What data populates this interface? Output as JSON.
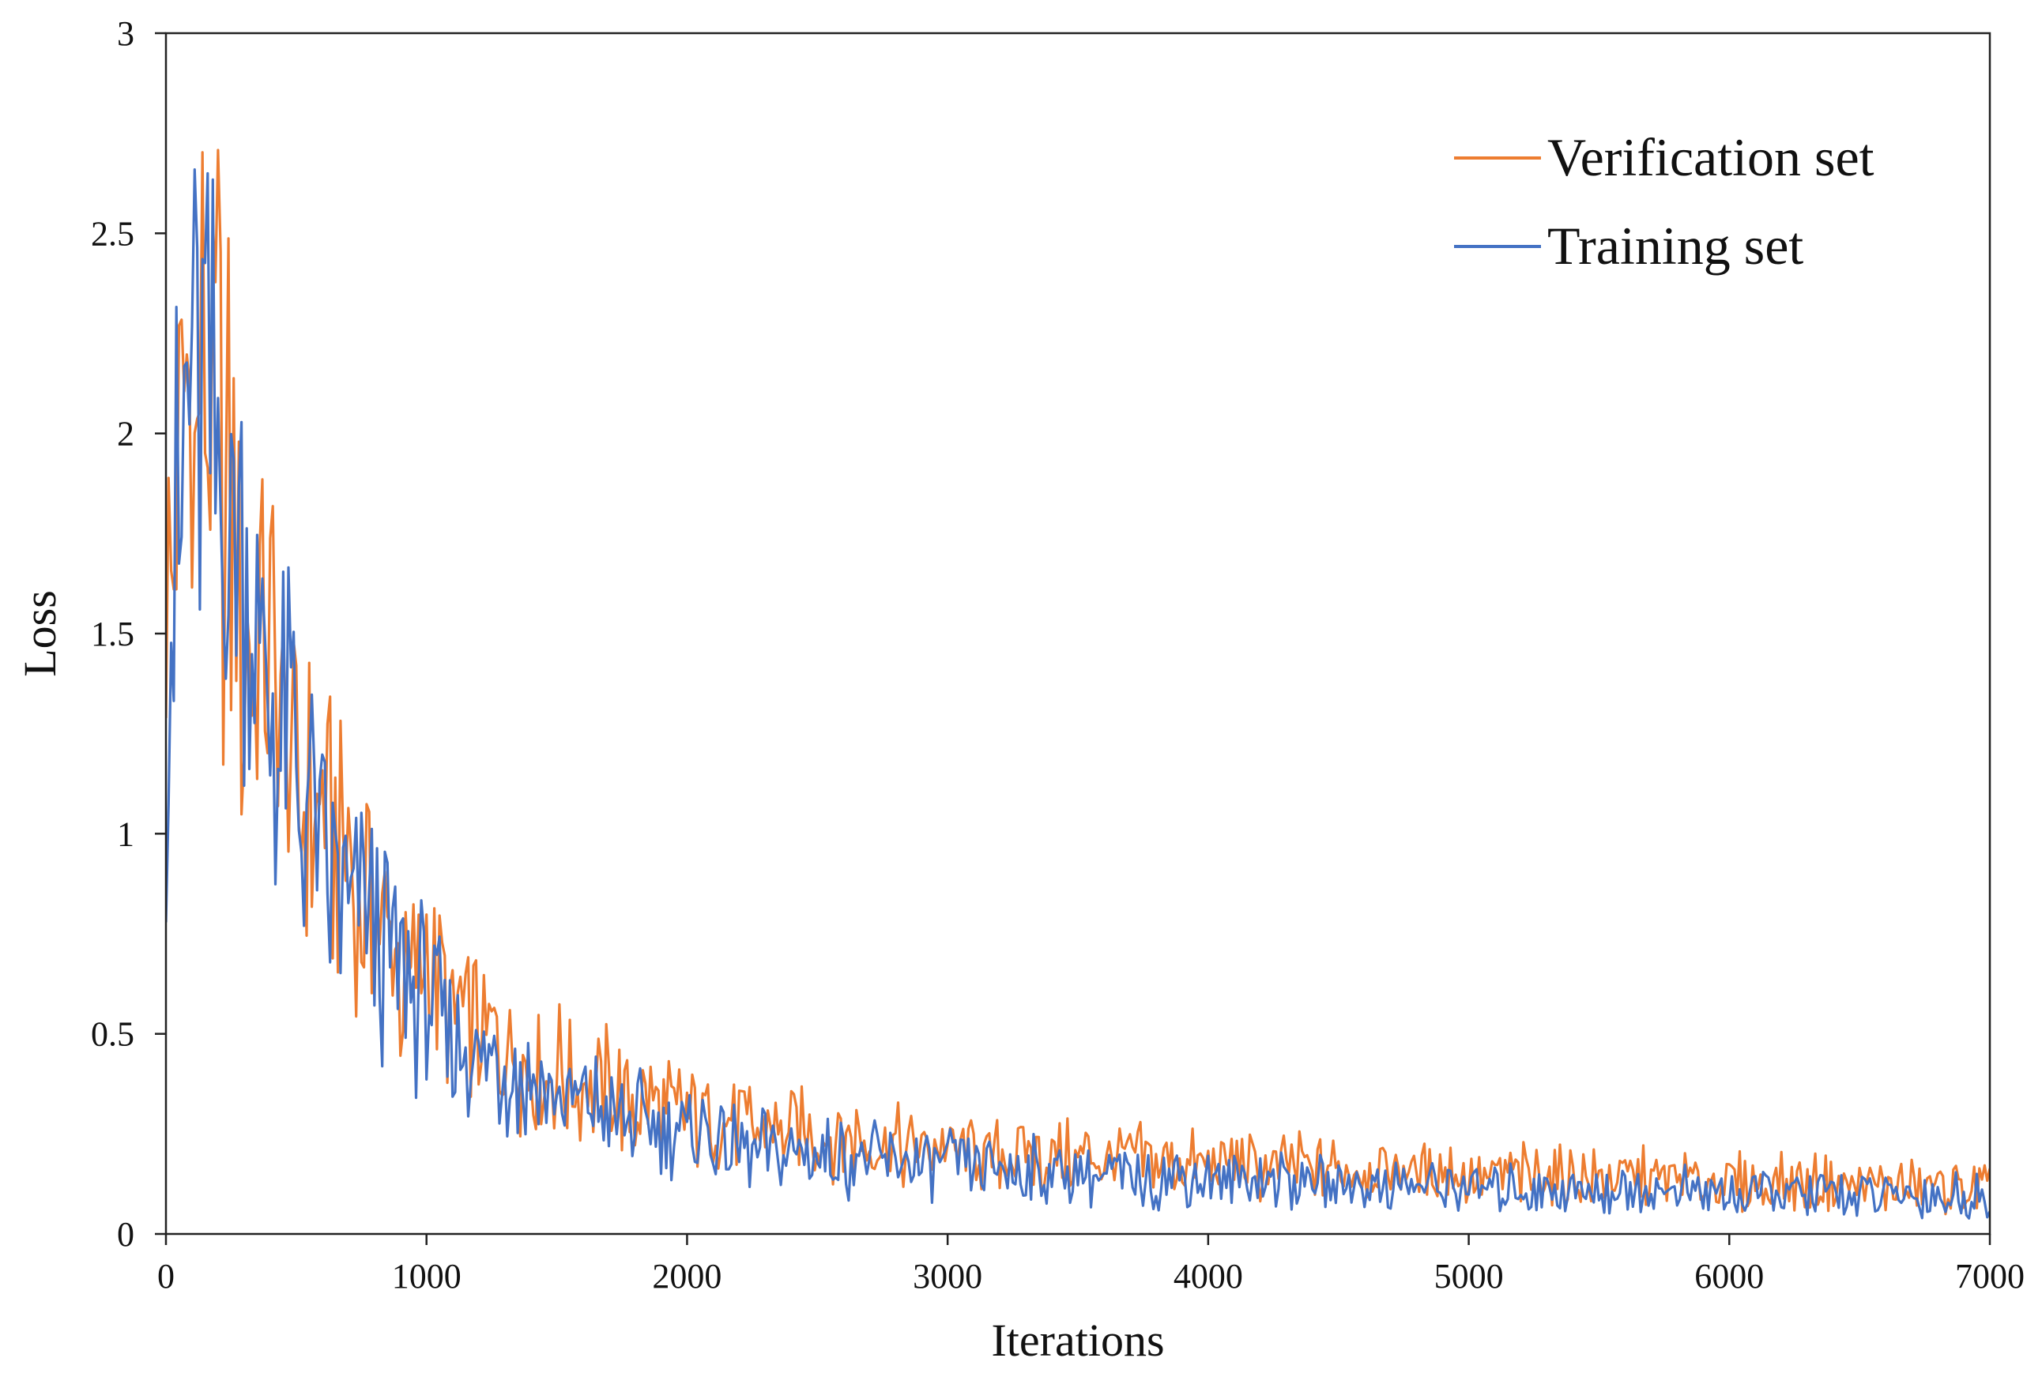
{
  "chart_data": {
    "type": "line",
    "xlabel": "Iterations",
    "ylabel": "Loss",
    "xlim": [
      0,
      7000
    ],
    "ylim": [
      0,
      3
    ],
    "xticks": [
      "0",
      "1000",
      "2000",
      "3000",
      "4000",
      "5000",
      "6000",
      "7000"
    ],
    "yticks": [
      "0",
      "0.5",
      "1",
      "1.5",
      "2",
      "2.5",
      "3"
    ],
    "grid": false,
    "legend_position": "top-right",
    "series": [
      {
        "name": "Verification set",
        "color": "#ED7D31",
        "x": [
          0,
          100,
          200,
          300,
          400,
          500,
          600,
          700,
          800,
          900,
          1000,
          1100,
          1200,
          1300,
          1400,
          1500,
          1600,
          1700,
          1800,
          1900,
          2000,
          2200,
          2400,
          2600,
          2800,
          3000,
          3200,
          3400,
          3600,
          3800,
          4000,
          4200,
          4400,
          4600,
          4800,
          5000,
          5200,
          5400,
          5600,
          5800,
          6000,
          6200,
          6400,
          6600,
          6800,
          7000
        ],
        "values": [
          1.45,
          2.1,
          2.0,
          1.45,
          1.5,
          1.05,
          1.05,
          0.9,
          0.8,
          0.65,
          0.7,
          0.55,
          0.5,
          0.45,
          0.45,
          0.4,
          0.38,
          0.35,
          0.33,
          0.31,
          0.3,
          0.27,
          0.25,
          0.24,
          0.22,
          0.21,
          0.2,
          0.19,
          0.185,
          0.18,
          0.175,
          0.17,
          0.165,
          0.16,
          0.155,
          0.15,
          0.145,
          0.14,
          0.14,
          0.135,
          0.13,
          0.13,
          0.125,
          0.12,
          0.12,
          0.115
        ]
      },
      {
        "name": "Training set",
        "color": "#4472C4",
        "x": [
          0,
          100,
          200,
          300,
          400,
          500,
          600,
          700,
          800,
          900,
          1000,
          1100,
          1200,
          1300,
          1400,
          1500,
          1600,
          1700,
          1800,
          1900,
          2000,
          2200,
          2400,
          2600,
          2800,
          3000,
          3200,
          3400,
          3600,
          3800,
          4000,
          4200,
          4400,
          4600,
          4800,
          5000,
          5200,
          5400,
          5600,
          5800,
          6000,
          6200,
          6400,
          6600,
          6800,
          7000
        ],
        "values": [
          1.3,
          2.2,
          1.95,
          1.55,
          1.35,
          1.15,
          0.95,
          0.85,
          0.75,
          0.65,
          0.58,
          0.5,
          0.45,
          0.42,
          0.38,
          0.35,
          0.32,
          0.3,
          0.28,
          0.26,
          0.25,
          0.22,
          0.2,
          0.19,
          0.18,
          0.17,
          0.16,
          0.155,
          0.15,
          0.145,
          0.14,
          0.135,
          0.13,
          0.125,
          0.12,
          0.12,
          0.115,
          0.11,
          0.11,
          0.105,
          0.1,
          0.1,
          0.1,
          0.095,
          0.095,
          0.09
        ]
      }
    ]
  }
}
